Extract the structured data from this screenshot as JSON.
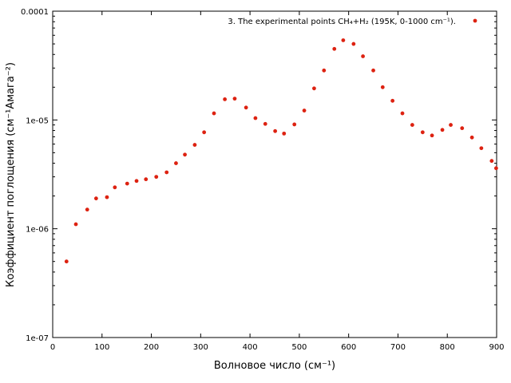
{
  "chart_data": {
    "type": "scatter",
    "xlabel": "Волновое число (см⁻¹)",
    "ylabel": "Коэффициент поглощения (см⁻¹Амага⁻²)",
    "xlim": [
      0,
      900
    ],
    "ylim": [
      1e-07,
      0.0001
    ],
    "yscale": "log",
    "grid": false,
    "legend_position": "top-right",
    "x_ticks": [
      "0",
      "100",
      "200",
      "300",
      "400",
      "500",
      "600",
      "700",
      "800",
      "900"
    ],
    "y_ticks": [
      "1e-07",
      "1e-06",
      "1e-05",
      "0.0001"
    ],
    "series": [
      {
        "name": "3. The experimental points CH₄+H₂ (195K, 0-1000 cm⁻¹).",
        "color": "#dd2211",
        "marker": "circle",
        "points": [
          [
            28,
            5e-07
          ],
          [
            47,
            1.1e-06
          ],
          [
            70,
            1.5e-06
          ],
          [
            88,
            1.9e-06
          ],
          [
            110,
            1.95e-06
          ],
          [
            126,
            2.4e-06
          ],
          [
            151,
            2.6e-06
          ],
          [
            170,
            2.75e-06
          ],
          [
            189,
            2.85e-06
          ],
          [
            210,
            3e-06
          ],
          [
            231,
            3.3e-06
          ],
          [
            250,
            4e-06
          ],
          [
            268,
            4.8e-06
          ],
          [
            288,
            5.9e-06
          ],
          [
            307,
            7.7e-06
          ],
          [
            327,
            1.15e-05
          ],
          [
            349,
            1.55e-05
          ],
          [
            369,
            1.57e-05
          ],
          [
            392,
            1.3e-05
          ],
          [
            411,
            1.04e-05
          ],
          [
            431,
            9.2e-06
          ],
          [
            451,
            7.9e-06
          ],
          [
            469,
            7.5e-06
          ],
          [
            490,
            9.1e-06
          ],
          [
            510,
            1.22e-05
          ],
          [
            530,
            1.95e-05
          ],
          [
            550,
            2.85e-05
          ],
          [
            571,
            4.5e-05
          ],
          [
            589,
            5.4e-05
          ],
          [
            610,
            5e-05
          ],
          [
            629,
            3.85e-05
          ],
          [
            650,
            2.85e-05
          ],
          [
            669,
            2e-05
          ],
          [
            689,
            1.5e-05
          ],
          [
            709,
            1.15e-05
          ],
          [
            729,
            9e-06
          ],
          [
            750,
            7.7e-06
          ],
          [
            769,
            7.2e-06
          ],
          [
            790,
            8.1e-06
          ],
          [
            807,
            9e-06
          ],
          [
            830,
            8.4e-06
          ],
          [
            850,
            6.9e-06
          ],
          [
            869,
            5.5e-06
          ],
          [
            890,
            4.2e-06
          ],
          [
            899,
            3.6e-06
          ]
        ]
      }
    ]
  }
}
